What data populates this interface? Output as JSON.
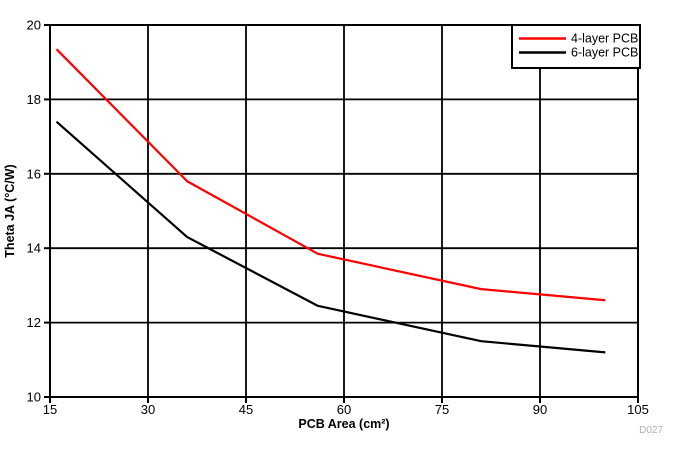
{
  "chart_data": {
    "type": "line",
    "title": "",
    "xlabel": "PCB Area (cm²)",
    "ylabel": "Theta JA (°C/W)",
    "watermark": "D027",
    "xlim": [
      15,
      105
    ],
    "ylim": [
      10,
      20
    ],
    "xticks": [
      15,
      30,
      45,
      60,
      75,
      90,
      105
    ],
    "yticks": [
      10,
      12,
      14,
      16,
      18,
      20
    ],
    "grid": true,
    "legend_position": "top-right",
    "x": [
      16,
      36,
      56,
      81,
      100
    ],
    "series": [
      {
        "name": "4-layer PCB",
        "color": "#ff0000",
        "values": [
          19.35,
          15.8,
          13.85,
          12.9,
          12.6
        ]
      },
      {
        "name": "6-layer PCB",
        "color": "#000000",
        "values": [
          17.4,
          14.3,
          12.45,
          11.5,
          11.2
        ]
      }
    ],
    "colors": {
      "axis": "#000000",
      "grid": "#000000",
      "background": "#ffffff",
      "watermark": "#b3b3b3"
    }
  }
}
